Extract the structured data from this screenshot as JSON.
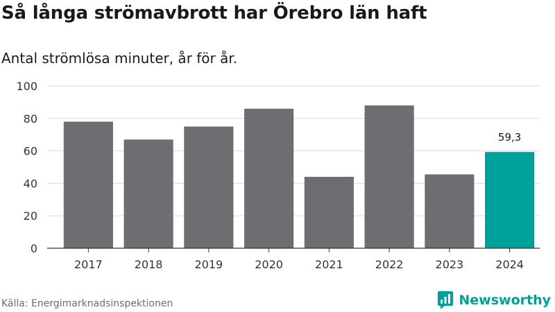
{
  "header": {
    "title": "Så långa strömavbrott har Örebro län haft",
    "subtitle": "Antal strömlösa minuter, år för år."
  },
  "footer": {
    "source": "Källa: Energimarknadsinspektionen",
    "brand": "Newsworthy"
  },
  "colors": {
    "bar": "#6e6d72",
    "highlight": "#00a19a",
    "grid": "#d9d9d9",
    "axis": "#333333"
  },
  "chart_data": {
    "type": "bar",
    "title": "Så långa strömavbrott har Örebro län haft",
    "subtitle": "Antal strömlösa minuter, år för år.",
    "xlabel": "",
    "ylabel": "",
    "categories": [
      "2017",
      "2018",
      "2019",
      "2020",
      "2021",
      "2022",
      "2023",
      "2024"
    ],
    "values": [
      78,
      67,
      75,
      86,
      44,
      88,
      45.5,
      59.3
    ],
    "highlight_index": 7,
    "annotations": [
      {
        "category": "2024",
        "label": "59,3"
      }
    ],
    "ylim": [
      0,
      100
    ],
    "yticks": [
      0,
      20,
      40,
      60,
      80,
      100
    ],
    "grid": true,
    "legend": "none"
  }
}
